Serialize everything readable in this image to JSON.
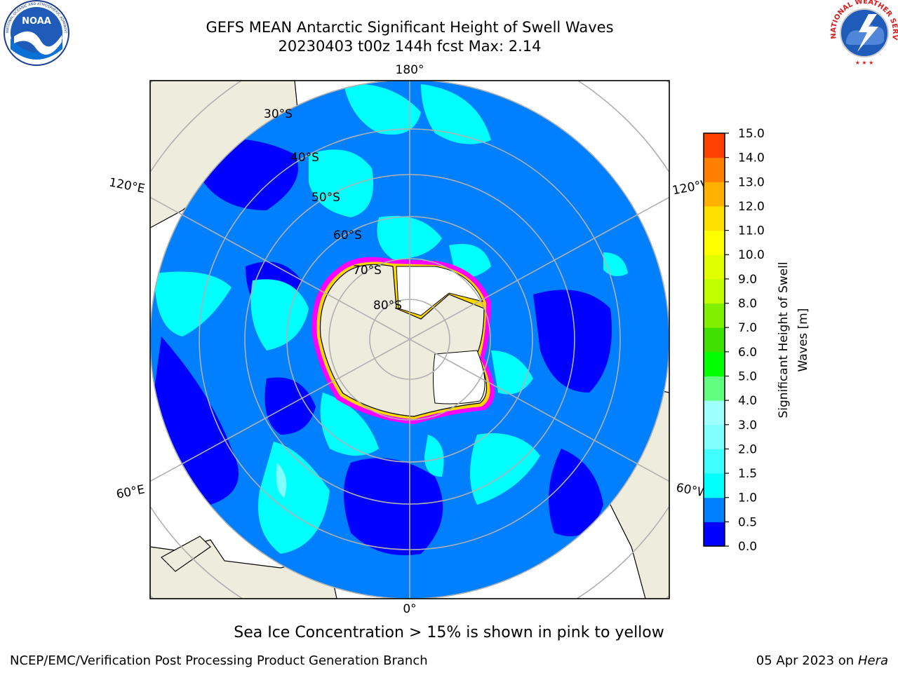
{
  "header": {
    "title_line1": "GEFS MEAN Antarctic Significant Height of Swell Waves",
    "title_line2": "20230403 t00z 144h fcst   Max: 2.14"
  },
  "logos": {
    "left": "noara-logo",
    "right": "national-weather-service-logo",
    "noaa_text": "NOAA",
    "noaa_ring_text": "NATIONAL OCEANIC AND ATMOSPHERIC ADMINISTRATION · U.S. DEPARTMENT OF COMMERCE",
    "nws_ring_text": "NATIONAL WEATHER SERVICE"
  },
  "map": {
    "projection": "south-polar-stereographic",
    "lat_labels": [
      "30°S",
      "40°S",
      "50°S",
      "60°S",
      "70°S",
      "80°S"
    ],
    "lon_labels": {
      "top": "180°",
      "bottom": "0°",
      "upper_left": "120°E",
      "lower_left": "60°E",
      "upper_right": "120°W",
      "lower_right": "60°W"
    },
    "colors": {
      "ocean_low": "#0000ff",
      "ocean_mid": "#0080ff",
      "ocean_high": "#00ffff",
      "land": "#eeecdc",
      "ice_shelf": "#ffffff",
      "ice_edge_pink": "#ff00ff",
      "ice_edge_yellow": "#ffd700",
      "grid": "#b0b0b0"
    }
  },
  "colorbar": {
    "label_line1": "Significant Height of Swell",
    "label_line2": "Waves [m]",
    "ticks": [
      "0.0",
      "0.5",
      "1.0",
      "1.5",
      "2.0",
      "3.0",
      "4.0",
      "5.0",
      "6.0",
      "7.0",
      "8.0",
      "9.0",
      "10.0",
      "11.0",
      "12.0",
      "13.0",
      "14.0",
      "15.0"
    ],
    "colors": [
      "#0000ff",
      "#0080ff",
      "#00ffff",
      "#40ffff",
      "#80ffff",
      "#a0ffff",
      "#60ff80",
      "#00ff00",
      "#40e000",
      "#80f000",
      "#c0ff00",
      "#e0ff00",
      "#ffff00",
      "#ffe000",
      "#ffb000",
      "#ff8000",
      "#ff4000",
      "#ff0000"
    ]
  },
  "footer": {
    "note": "Sea Ice Concentration > 15% is shown in pink to yellow",
    "credit": "NCEP/EMC/Verification Post Processing Product Generation Branch",
    "date": "05 Apr 2023 on ",
    "host": "Hera"
  }
}
